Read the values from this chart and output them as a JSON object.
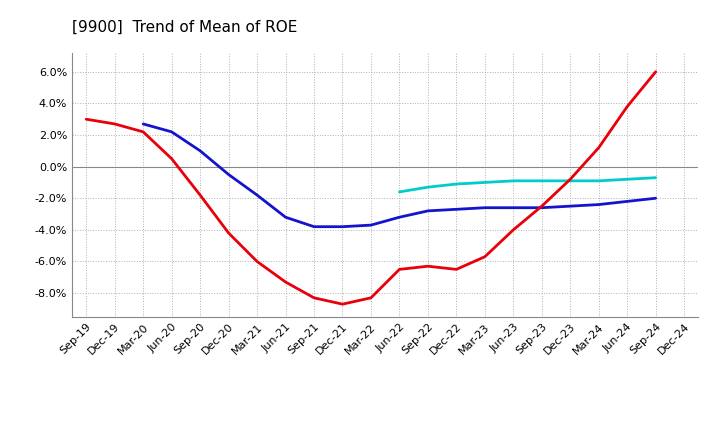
{
  "title": "[9900]  Trend of Mean of ROE",
  "x_labels": [
    "Sep-19",
    "Dec-19",
    "Mar-20",
    "Jun-20",
    "Sep-20",
    "Dec-20",
    "Mar-21",
    "Jun-21",
    "Sep-21",
    "Dec-21",
    "Mar-22",
    "Jun-22",
    "Sep-22",
    "Dec-22",
    "Mar-23",
    "Jun-23",
    "Sep-23",
    "Dec-23",
    "Mar-24",
    "Jun-24",
    "Sep-24",
    "Dec-24"
  ],
  "ylim": [
    -0.095,
    0.072
  ],
  "yticks": [
    -0.08,
    -0.06,
    -0.04,
    -0.02,
    0.0,
    0.02,
    0.04,
    0.06
  ],
  "series": {
    "3 Years": {
      "color": "#e8000a",
      "values": [
        0.03,
        0.027,
        0.022,
        0.005,
        -0.018,
        -0.042,
        -0.06,
        -0.073,
        -0.083,
        -0.087,
        -0.083,
        -0.065,
        -0.063,
        -0.065,
        -0.057,
        -0.04,
        -0.025,
        -0.008,
        0.012,
        0.038,
        0.06,
        null
      ]
    },
    "5 Years": {
      "color": "#1414cc",
      "values": [
        null,
        null,
        0.027,
        0.022,
        0.01,
        -0.005,
        -0.018,
        -0.032,
        -0.038,
        -0.038,
        -0.037,
        -0.032,
        -0.028,
        -0.027,
        -0.026,
        -0.026,
        -0.026,
        -0.025,
        -0.024,
        -0.022,
        -0.02,
        null
      ]
    },
    "7 Years": {
      "color": "#00cccc",
      "values": [
        null,
        null,
        null,
        null,
        null,
        null,
        null,
        null,
        null,
        null,
        null,
        -0.016,
        -0.013,
        -0.011,
        -0.01,
        -0.009,
        -0.009,
        -0.009,
        -0.009,
        -0.008,
        -0.007,
        null
      ]
    },
    "10 Years": {
      "color": "#008000",
      "values": [
        null,
        null,
        null,
        null,
        null,
        null,
        null,
        null,
        null,
        null,
        null,
        null,
        null,
        null,
        null,
        null,
        null,
        null,
        null,
        null,
        null,
        null
      ]
    }
  },
  "background_color": "#ffffff",
  "grid_color": "#b0b0b0",
  "zero_line_color": "#888888",
  "title_fontsize": 11,
  "tick_fontsize": 8,
  "legend_fontsize": 9
}
